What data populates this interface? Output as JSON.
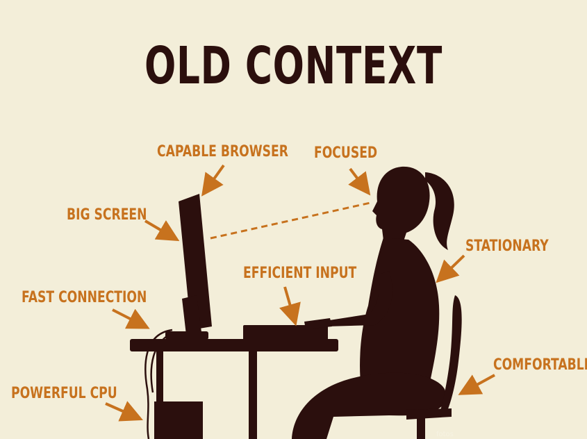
{
  "title": "OLD CONTEXT",
  "labels": {
    "capable_browser": "CAPABLE BROWSER",
    "focused": "FOCUSED",
    "big_screen": "BIG SCREEN",
    "stationary": "STATIONARY",
    "efficient_input": "EFFICIENT INPUT",
    "fast_connection": "FAST CONNECTION",
    "comfortable": "COMFORTABLE",
    "powerful_cpu": "POWERFUL CPU"
  },
  "colors": {
    "background": "#f3eed9",
    "silhouette": "#2b0f0d",
    "accent": "#c7721e"
  }
}
